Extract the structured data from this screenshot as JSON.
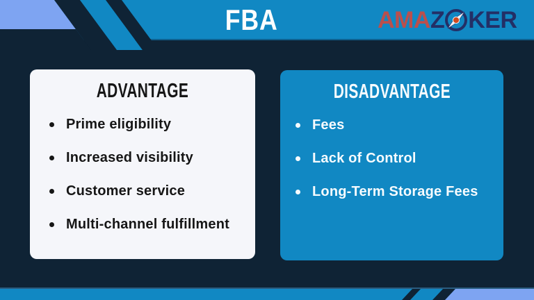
{
  "header": {
    "title": "FBA",
    "brand": {
      "part1": "AMA",
      "part2": "Z",
      "part3": "KER"
    }
  },
  "cards": {
    "advantage": {
      "title": "ADVANTAGE",
      "items": [
        "Prime eligibility",
        "Increased visibility",
        "Customer service",
        "Multi-channel fulfillment"
      ]
    },
    "disadvantage": {
      "title": "DISADVANTAGE",
      "items": [
        "Fees",
        "Lack of Control",
        "Long-Term Storage Fees"
      ]
    }
  },
  "icons": {
    "compass": "compass-icon"
  },
  "colors": {
    "navy": "#0f2335",
    "blue": "#1188c3",
    "periwinkle": "#7ea4f2",
    "card_bg": "#f5f6fa",
    "logo_red": "#bb4f4c",
    "logo_navy": "#232f66",
    "compass_orange": "#d04a20",
    "text_dark": "#161616",
    "text_light": "#f6fbfe"
  }
}
